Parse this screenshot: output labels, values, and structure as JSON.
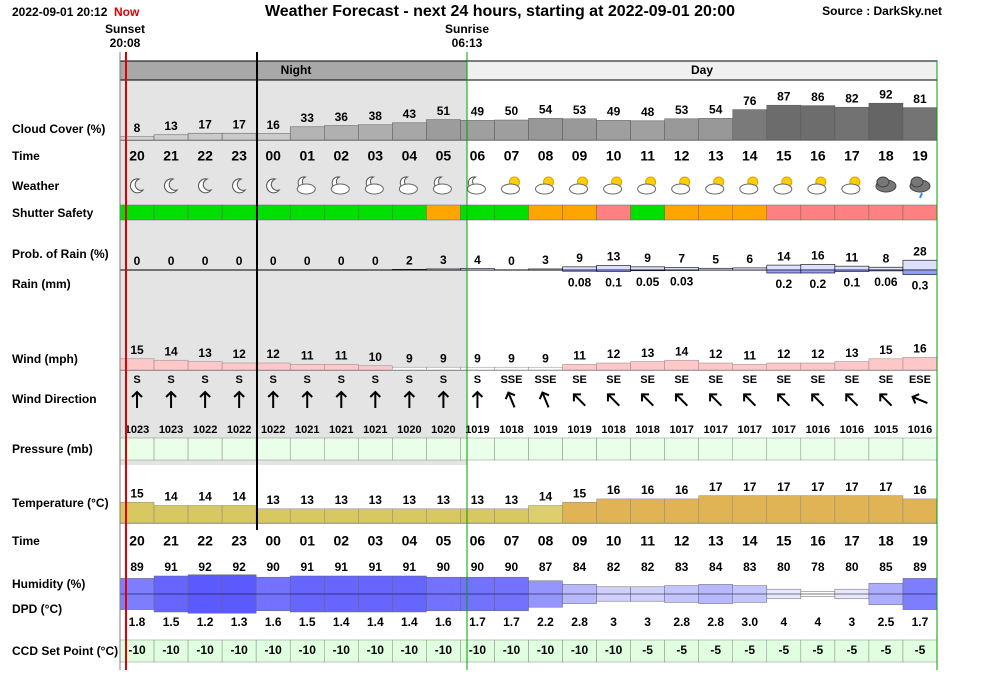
{
  "header": {
    "timestamp": "2022-09-01 20:12",
    "now": "Now",
    "title": "Weather Forecast - next 24 hours, starting at 2022-09-01 20:00",
    "source": "Source : DarkSky.net"
  },
  "sunset": {
    "label": "Sunset",
    "time": "20:08"
  },
  "sunrise": {
    "label": "Sunrise",
    "time": "06:13"
  },
  "bands": {
    "night": "Night",
    "day": "Day"
  },
  "hours": [
    "20",
    "21",
    "22",
    "23",
    "00",
    "01",
    "02",
    "03",
    "04",
    "05",
    "06",
    "07",
    "08",
    "09",
    "10",
    "11",
    "12",
    "13",
    "14",
    "15",
    "16",
    "17",
    "18",
    "19"
  ],
  "rows": {
    "cloud_cover": {
      "label": "Cloud Cover (%)",
      "values": [
        8,
        13,
        17,
        17,
        16,
        33,
        36,
        38,
        43,
        51,
        49,
        50,
        54,
        53,
        49,
        48,
        53,
        54,
        76,
        87,
        86,
        82,
        92,
        81
      ]
    },
    "time": {
      "label": "Time"
    },
    "weather": {
      "label": "Weather"
    },
    "shutter_safety": {
      "label": "Shutter Safety",
      "colors": [
        "#00e000",
        "#00e000",
        "#00e000",
        "#00e000",
        "#00e000",
        "#00e000",
        "#00e000",
        "#00e000",
        "#00e000",
        "#ffa500",
        "#00e000",
        "#00e000",
        "#ffa500",
        "#ffa500",
        "#ff8080",
        "#00e000",
        "#ffa500",
        "#ffa500",
        "#ffa500",
        "#ff8080",
        "#ff8080",
        "#ff8080",
        "#ff8080",
        "#ff8080"
      ]
    },
    "prob_rain": {
      "label": "Prob. of Rain (%)",
      "values": [
        0,
        0,
        0,
        0,
        0,
        0,
        0,
        0,
        2,
        3,
        4,
        0,
        3,
        9,
        13,
        9,
        7,
        5,
        6,
        14,
        16,
        11,
        8,
        28
      ]
    },
    "rain": {
      "label": "Rain (mm)",
      "values": [
        null,
        null,
        null,
        null,
        null,
        null,
        null,
        null,
        null,
        null,
        null,
        null,
        null,
        0.08,
        0.1,
        0.05,
        0.03,
        null,
        null,
        0.2,
        0.2,
        0.1,
        0.06,
        0.3
      ]
    },
    "wind": {
      "label": "Wind (mph)",
      "values": [
        15,
        14,
        13,
        12,
        12,
        11,
        11,
        10,
        9,
        9,
        9,
        9,
        9,
        11,
        12,
        13,
        14,
        12,
        11,
        12,
        12,
        13,
        15,
        16
      ]
    },
    "wind_direction": {
      "label": "Wind Direction",
      "values": [
        "S",
        "S",
        "S",
        "S",
        "S",
        "S",
        "S",
        "S",
        "S",
        "S",
        "S",
        "SSE",
        "SSE",
        "SE",
        "SE",
        "SE",
        "SE",
        "SE",
        "SE",
        "SE",
        "SE",
        "SE",
        "SE",
        "ESE"
      ]
    },
    "pressure": {
      "label": "Pressure (mb)",
      "values": [
        1023,
        1023,
        1022,
        1022,
        1022,
        1021,
        1021,
        1021,
        1020,
        1020,
        1019,
        1018,
        1019,
        1019,
        1018,
        1018,
        1017,
        1017,
        1017,
        1017,
        1016,
        1016,
        1015,
        1016
      ]
    },
    "temperature": {
      "label": "Temperature (°C)",
      "values": [
        15,
        14,
        14,
        14,
        13,
        13,
        13,
        13,
        13,
        13,
        13,
        13,
        14,
        15,
        16,
        16,
        16,
        17,
        17,
        17,
        17,
        17,
        17,
        16
      ]
    },
    "time2": {
      "label": "Time"
    },
    "humidity": {
      "label": "Humidity (%)",
      "values": [
        89,
        91,
        92,
        92,
        90,
        91,
        91,
        91,
        91,
        90,
        90,
        90,
        87,
        84,
        82,
        82,
        83,
        84,
        83,
        80,
        78,
        80,
        85,
        89
      ]
    },
    "dpd": {
      "label": "DPD (°C)",
      "values": [
        1.8,
        1.5,
        1.2,
        1.3,
        1.6,
        1.5,
        1.4,
        1.4,
        1.4,
        1.6,
        1.7,
        1.7,
        2.2,
        2.8,
        3,
        3,
        2.8,
        2.8,
        3.0,
        4,
        4,
        3,
        2.5,
        1.7
      ],
      "value_labels": [
        "1.8",
        "1.5",
        "1.2",
        "1.3",
        "1.6",
        "1.5",
        "1.4",
        "1.4",
        "1.4",
        "1.6",
        "1.7",
        "1.7",
        "2.2",
        "2.8",
        "3",
        "3",
        "2.8",
        "2.8",
        "3.0",
        "4",
        "4",
        "3",
        "2.5",
        "1.7"
      ]
    },
    "ccd": {
      "label": "CCD Set Point (°C)",
      "values": [
        -10,
        -10,
        -10,
        -10,
        -10,
        -10,
        -10,
        -10,
        -10,
        -10,
        -10,
        -10,
        -10,
        -10,
        -10,
        -5,
        -5,
        -5,
        -5,
        -5,
        -5,
        -5,
        -5,
        -5
      ]
    }
  }
}
